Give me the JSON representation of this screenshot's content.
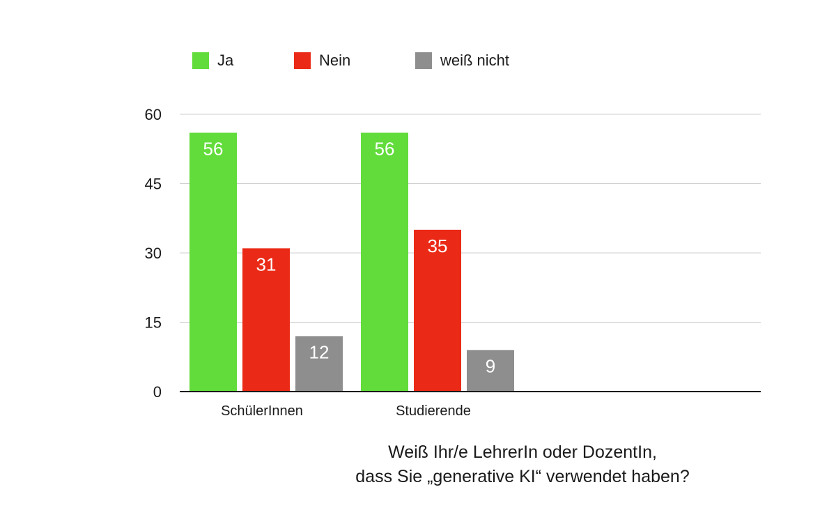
{
  "chart_data": {
    "type": "bar",
    "title": "",
    "xlabel": "",
    "ylabel": "",
    "categories": [
      "SchülerInnen",
      "Studierende"
    ],
    "series": [
      {
        "name": "Ja",
        "color": "#62dc3b",
        "values": [
          56,
          56
        ]
      },
      {
        "name": "Nein",
        "color": "#ea2a16",
        "values": [
          31,
          35
        ]
      },
      {
        "name": "weiß nicht",
        "color": "#8e8e8e",
        "values": [
          12,
          9
        ]
      }
    ],
    "ylim": [
      0,
      60
    ],
    "yticks": [
      0,
      15,
      30,
      45,
      60
    ],
    "grid": true,
    "legend": "top",
    "caption": [
      "Weiß Ihr/e LehrerIn oder DozentIn,",
      "dass Sie „generative KI“ verwendet haben?"
    ]
  }
}
